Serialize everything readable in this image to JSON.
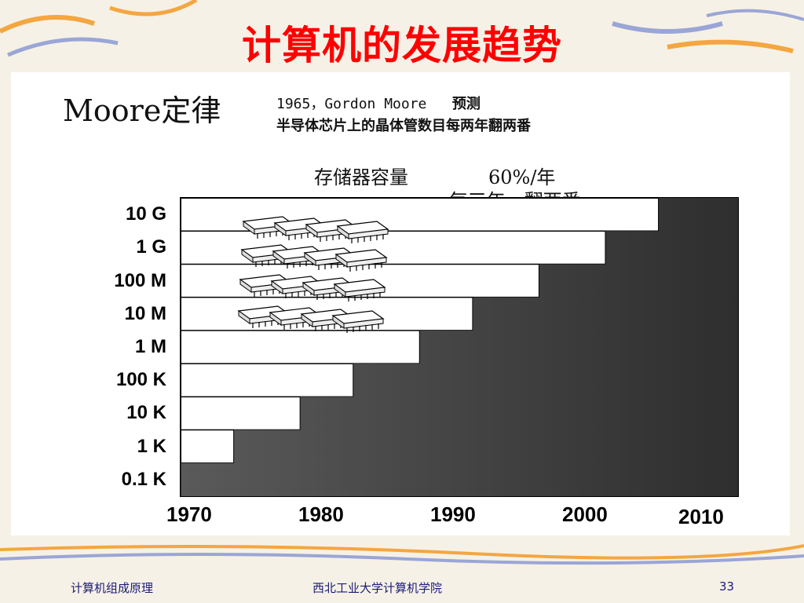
{
  "slide": {
    "title": "计算机的发展趋势",
    "moore_title": "Moore定律",
    "prediction_year_author": "1965，Gordon Moore",
    "prediction_verb": "预测",
    "prediction_text": "半导体芯片上的晶体管数目每两年翻两番",
    "memory_growth_label": "存储器容量",
    "memory_growth_rate": "60%/年",
    "memory_growth_note": "— 每三年，翻两番"
  },
  "chart_data": {
    "type": "area",
    "y_scale": "log",
    "y_tick_labels": [
      "10 G",
      "1 G",
      "100 M",
      "10 M",
      "1 M",
      "100 K",
      "10 K",
      "1 K",
      "0.1 K"
    ],
    "x_tick_labels": [
      "1970",
      "1980",
      "1990",
      "2000",
      "2010"
    ],
    "xlim": [
      1970,
      2012
    ],
    "steps": [
      {
        "year_start": 1970,
        "capacity": "0.1 K"
      },
      {
        "year_start": 1974,
        "capacity": "1 K"
      },
      {
        "year_start": 1979,
        "capacity": "10 K"
      },
      {
        "year_start": 1983,
        "capacity": "100 K"
      },
      {
        "year_start": 1988,
        "capacity": "1 M"
      },
      {
        "year_start": 1992,
        "capacity": "10 M"
      },
      {
        "year_start": 1997,
        "capacity": "100 M"
      },
      {
        "year_start": 2002,
        "capacity": "1 G"
      },
      {
        "year_start": 2006,
        "capacity": "10 G"
      }
    ],
    "fill_color": "#3a3a3a"
  },
  "footer": {
    "course": "计算机组成原理",
    "school": "西北工业大学计算机学院",
    "page": "33"
  }
}
